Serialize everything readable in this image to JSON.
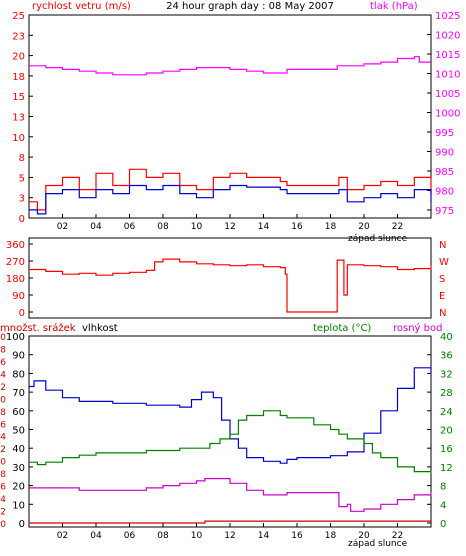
{
  "chart_data": [
    {
      "type": "line",
      "title": "24 hour graph day : 08 May 2007",
      "left_label": "rychlost vetru (m/s)",
      "right_label": "tlak (hPa)",
      "left_ticks": [
        "0",
        "3",
        "5",
        "8",
        "10",
        "13",
        "15",
        "18",
        "20",
        "23",
        "25"
      ],
      "right_ticks": [
        "975",
        "980",
        "985",
        "990",
        "995",
        "1000",
        "1005",
        "1010",
        "1015",
        "1020",
        "1025"
      ],
      "x_ticks": [
        "02",
        "04",
        "06",
        "08",
        "10",
        "12",
        "14",
        "16",
        "18",
        "20",
        "22"
      ],
      "x_annotation": "západ slunce",
      "ylim": [
        0,
        25
      ],
      "ylim_right": [
        970,
        1026
      ],
      "series": [
        {
          "color": "#ff00ff",
          "axis": "right",
          "x": [
            0,
            1,
            2,
            3,
            4,
            5,
            6,
            7,
            8,
            9,
            10,
            11,
            12,
            13,
            14,
            15,
            15.4,
            17,
            18,
            18.4,
            19,
            20,
            21,
            22,
            23,
            23.3,
            24
          ],
          "values": [
            1012,
            1011.5,
            1011,
            1010.5,
            1010,
            1009.5,
            1009.5,
            1010,
            1010.5,
            1011,
            1011.5,
            1011.5,
            1011,
            1010.5,
            1010,
            1010,
            1011,
            1011,
            1011,
            1012,
            1012,
            1012.5,
            1013,
            1014,
            1014.5,
            1013,
            1013
          ]
        },
        {
          "color": "#ff0000",
          "axis": "left",
          "x": [
            0,
            0.5,
            1,
            2,
            3,
            4,
            5,
            6,
            7,
            8,
            9,
            10,
            11,
            12,
            13,
            14,
            15,
            15.4,
            18,
            18.5,
            19,
            20,
            21,
            22,
            23,
            24
          ],
          "values": [
            2,
            1,
            4,
            5,
            3.5,
            5.5,
            4,
            6,
            5,
            5.5,
            4,
            3.5,
            5,
            5.5,
            5,
            5,
            4.5,
            4,
            4,
            5,
            3.5,
            4,
            4.5,
            4,
            5,
            3
          ]
        },
        {
          "color": "#0000cc",
          "axis": "left",
          "x": [
            0,
            0.5,
            1,
            2,
            3,
            4,
            5,
            6,
            7,
            8,
            9,
            10,
            11,
            12,
            13,
            14,
            15,
            15.4,
            18,
            18.5,
            19,
            20,
            21,
            22,
            23,
            24
          ],
          "values": [
            1,
            0.5,
            3,
            3.5,
            2.5,
            3.5,
            3,
            4,
            3.5,
            4,
            3,
            2.5,
            3.5,
            4,
            3.8,
            3.8,
            3.5,
            3,
            3,
            3.5,
            2,
            2.5,
            3,
            2.5,
            3.5,
            2
          ]
        }
      ]
    },
    {
      "type": "line",
      "left_ticks": [
        "0",
        "90",
        "180",
        "270",
        "360"
      ],
      "right_ticks": [
        "N",
        "W",
        "S",
        "E",
        "N"
      ],
      "ylim": [
        0,
        360
      ],
      "series": [
        {
          "color": "#ff0000",
          "x": [
            0,
            1,
            2,
            3,
            4,
            5,
            6,
            7,
            7.5,
            8,
            9,
            10,
            11,
            12,
            13,
            14,
            15,
            15.3,
            15.4,
            18.3,
            18.4,
            18.8,
            19,
            20,
            21,
            22,
            23,
            24
          ],
          "values": [
            225,
            215,
            200,
            205,
            195,
            205,
            210,
            220,
            265,
            280,
            265,
            255,
            250,
            245,
            250,
            240,
            235,
            200,
            0,
            0,
            275,
            90,
            250,
            245,
            240,
            225,
            230,
            250
          ]
        }
      ]
    },
    {
      "type": "line",
      "left_label_1": "množst. srážek",
      "left_label_2": "vlhkost",
      "right_label_1": "teplota (°C)",
      "right_label_2": "rosný bod",
      "left_ticks_rain": [
        "0",
        "2",
        "4",
        "6",
        "8",
        "10",
        "12",
        "14",
        "16",
        "18",
        "20",
        "22",
        "24",
        "26",
        "28",
        "30"
      ],
      "left_ticks_hum": [
        "0",
        "10",
        "20",
        "30",
        "40",
        "50",
        "60",
        "70",
        "80",
        "90",
        "100"
      ],
      "right_ticks": [
        "0",
        "4",
        "8",
        "12",
        "16",
        "20",
        "24",
        "28",
        "32",
        "36",
        "40"
      ],
      "x_ticks": [
        "02",
        "04",
        "06",
        "08",
        "10",
        "12",
        "14",
        "16",
        "18",
        "20",
        "22"
      ],
      "x_annotation": "západ slunce",
      "series": [
        {
          "color": "#0000cc",
          "axis": "hum",
          "x": [
            0,
            0.3,
            1,
            2,
            3,
            4,
            5,
            6,
            7,
            8,
            9,
            9.7,
            10.3,
            11,
            11.5,
            12,
            12.5,
            13,
            14,
            15,
            15.4,
            16,
            17,
            18,
            18.6,
            19,
            20,
            21,
            22,
            23,
            24
          ],
          "values": [
            73,
            76,
            71,
            67,
            65,
            65,
            64,
            64,
            63,
            63,
            62,
            66,
            70,
            67,
            55,
            45,
            40,
            35,
            33,
            32,
            34,
            35,
            35,
            36,
            36,
            38,
            48,
            60,
            72,
            83,
            80
          ]
        },
        {
          "color": "#008000",
          "axis": "right",
          "x": [
            0,
            0.5,
            1,
            2,
            3,
            4,
            5,
            6,
            7,
            8,
            9,
            10,
            10.8,
            11.4,
            12,
            12.5,
            13,
            14,
            15,
            15.4,
            16,
            17,
            18,
            18.5,
            19,
            20,
            20.5,
            21,
            22,
            23,
            24
          ],
          "values": [
            13,
            12.5,
            13,
            14,
            14.5,
            15,
            15,
            15,
            15.5,
            15.5,
            16,
            16,
            17,
            18,
            19,
            22,
            23,
            24,
            23,
            22.5,
            22.5,
            21,
            20,
            19,
            18,
            17,
            15,
            14,
            12,
            11,
            10.5
          ]
        },
        {
          "color": "#cc00cc",
          "axis": "right",
          "x": [
            0,
            1,
            2,
            3,
            4,
            5,
            6,
            7,
            8,
            9,
            10,
            10.5,
            11,
            12,
            13,
            14,
            15,
            15.4,
            18,
            18.5,
            19,
            19.2,
            20,
            21,
            22,
            23,
            24
          ],
          "values": [
            7.5,
            7.5,
            7.5,
            7,
            7,
            7,
            7,
            7.5,
            8,
            8.5,
            9,
            9.5,
            9.5,
            8.5,
            7,
            6,
            6,
            6.5,
            6.5,
            3.5,
            4,
            2.5,
            3,
            4,
            5,
            6,
            6.5
          ]
        },
        {
          "color": "#cc0000",
          "axis": "rain",
          "x": [
            0,
            10.4,
            10.5,
            24
          ],
          "values": [
            0,
            0,
            0.3,
            0.3
          ]
        }
      ]
    }
  ],
  "colors": {
    "background": "#ffffff",
    "frame": "#000000",
    "wind_label": "#ff0000",
    "pressure_label": "#ff00ff",
    "temp_label": "#008000",
    "dew_label": "#cc00cc",
    "humidity_label": "#000000"
  }
}
